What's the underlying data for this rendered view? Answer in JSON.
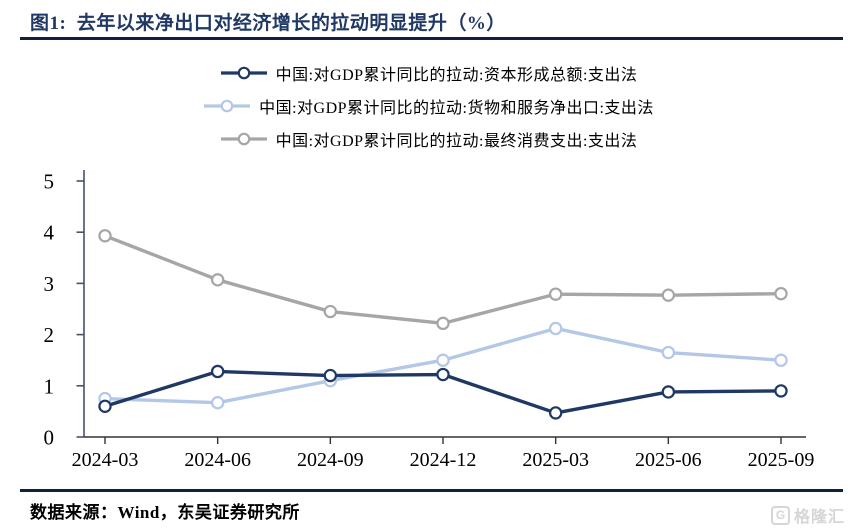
{
  "header": {
    "title": "图1:  去年以来净出口对经济增长的拉动明显提升（%）"
  },
  "chart_data": {
    "type": "line",
    "categories": [
      "2024-03",
      "2024-06",
      "2024-09",
      "2024-12",
      "2025-03",
      "2025-06",
      "2025-09"
    ],
    "series": [
      {
        "name": "中国:对GDP累计同比的拉动:资本形成总额:支出法",
        "color": "#1f3864",
        "values": [
          0.6,
          1.28,
          1.2,
          1.22,
          0.47,
          0.88,
          0.9
        ]
      },
      {
        "name": "中国:对GDP累计同比的拉动:货物和服务净出口:支出法",
        "color": "#b4c7e7",
        "values": [
          0.75,
          0.67,
          1.1,
          1.5,
          2.12,
          1.65,
          1.5
        ]
      },
      {
        "name": "中国:对GDP累计同比的拉动:最终消费支出:支出法",
        "color": "#a6a6a6",
        "values": [
          3.93,
          3.07,
          2.45,
          2.22,
          2.79,
          2.77,
          2.8
        ]
      }
    ],
    "title": "去年以来净出口对经济增长的拉动明显提升（%）",
    "xlabel": "",
    "ylabel": "",
    "ylim": [
      0,
      5
    ],
    "yticks": [
      0,
      1,
      2,
      3,
      4,
      5
    ],
    "grid": false,
    "legend_position": "top",
    "marker": "open-circle",
    "axis_colors": {
      "y_axis": "#44546a",
      "x_axis": "#333333"
    }
  },
  "footer": {
    "source_label": "数据来源：Wind，东吴证券研究所"
  },
  "watermark": {
    "icon": "G",
    "text": "格隆汇"
  }
}
